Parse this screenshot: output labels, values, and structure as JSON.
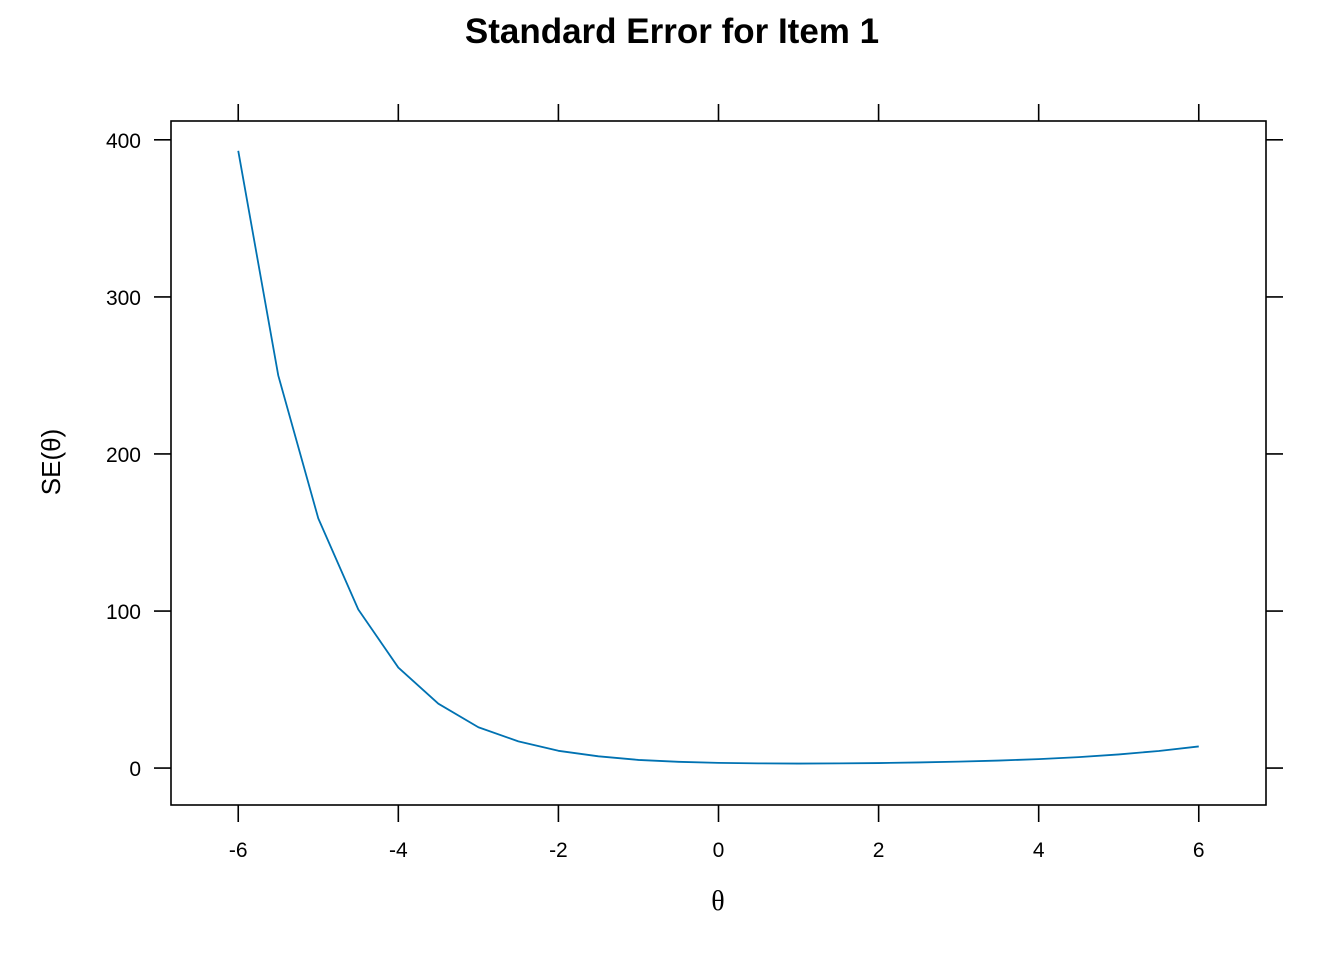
{
  "chart_data": {
    "type": "line",
    "title": "Standard Error for Item 1",
    "xlabel": "θ",
    "ylabel": "SE(θ)",
    "xlim": [
      -6.84,
      6.84
    ],
    "ylim": [
      -23.5,
      412
    ],
    "x_ticks": [
      -6,
      -4,
      -2,
      0,
      2,
      4,
      6
    ],
    "x_tick_labels": [
      "-6",
      "-4",
      "-2",
      "0",
      "2",
      "4",
      "6"
    ],
    "y_ticks": [
      0,
      100,
      200,
      300,
      400
    ],
    "y_tick_labels": [
      "0",
      "100",
      "200",
      "300",
      "400"
    ],
    "grid": false,
    "series": [
      {
        "name": "SE",
        "color": "#0072b2",
        "x": [
          -6,
          -5.5,
          -5,
          -4.5,
          -4,
          -3.5,
          -3,
          -2.5,
          -2,
          -1.5,
          -1,
          -0.5,
          0,
          0.5,
          1,
          1.5,
          2,
          2.5,
          3,
          3.5,
          4,
          4.5,
          5,
          5.5,
          6
        ],
        "y": [
          393,
          250,
          159,
          101,
          64,
          41,
          26,
          17,
          11,
          7.5,
          5.2,
          4.0,
          3.3,
          3.0,
          2.9,
          3.0,
          3.2,
          3.6,
          4.1,
          4.8,
          5.7,
          7.0,
          8.7,
          10.9,
          13.8
        ]
      }
    ]
  }
}
